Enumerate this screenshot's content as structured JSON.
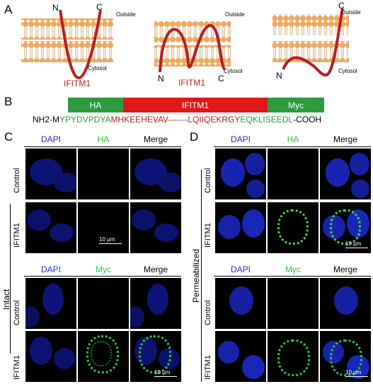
{
  "panelA": {
    "label": "A",
    "diagram1": {
      "n": "N",
      "c": "C",
      "outside": "Outside",
      "cytosol": "Cytosol",
      "protein": "IFITM1"
    },
    "diagram2": {
      "n": "N",
      "c": "C",
      "outside": "Outside",
      "cytosol": "Cytosol",
      "protein": "IFITM1"
    },
    "diagram3": {
      "n": "N",
      "c": "C",
      "outside": "Outside",
      "cytosol": "Cytosol"
    }
  },
  "panelB": {
    "label": "B",
    "tags": {
      "ha": "HA",
      "ifitm1": "IFITM1",
      "myc": "Myc"
    },
    "seq": {
      "nh2": "NH2-",
      "m": "M",
      "ha": "YPYDVPDYA",
      "ifitm1": "MHKEEHEVAV-------LQIIQEKRGY",
      "myc": "EQKLISEEDL",
      "cooh": "-COOH"
    }
  },
  "panelC": {
    "label": "C",
    "condition": "Intact",
    "top": {
      "cols": [
        "DAPI",
        "HA",
        "Merge"
      ],
      "rows": [
        "Control",
        "IFITM1"
      ],
      "scale": "10 μm"
    },
    "bottom": {
      "cols": [
        "DAPI",
        "Myc",
        "Merge"
      ],
      "rows": [
        "Control",
        "IFITM1"
      ],
      "scale": "10 μm"
    }
  },
  "panelD": {
    "label": "D",
    "condition": "Permeabilized",
    "top": {
      "cols": [
        "DAPI",
        "HA",
        "Merge"
      ],
      "rows": [
        "Control",
        "IFITM1"
      ],
      "scale": "10 μm"
    },
    "bottom": {
      "cols": [
        "DAPI",
        "Myc",
        "Merge"
      ],
      "rows": [
        "Control",
        "IFITM1"
      ],
      "scale": "10 μm"
    }
  },
  "colors": {
    "protein": "#b52020",
    "head": "#f0a860",
    "ha": "#2d9a40",
    "ifitm1": "#e01818",
    "myc": "#2d9a40",
    "dapi": "#1f2bd8",
    "green": "#2fc53a"
  }
}
